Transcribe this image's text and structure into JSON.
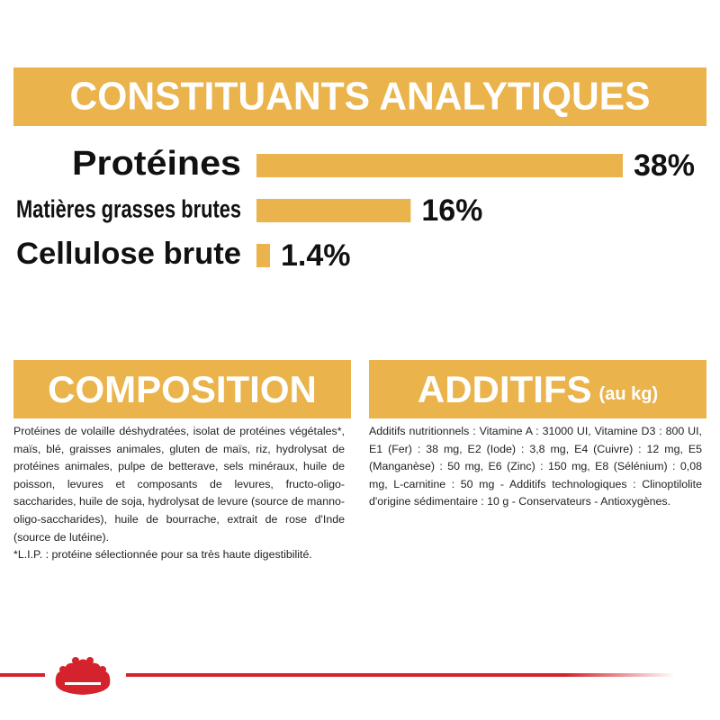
{
  "chart_data": {
    "type": "bar",
    "title": "CONSTITUANTS ANALYTIQUES",
    "categories": [
      "Protéines",
      "Matières grasses brutes",
      "Cellulose brute"
    ],
    "values": [
      38,
      16,
      1.4
    ],
    "value_labels": [
      "38%",
      "16%",
      "1.4%"
    ],
    "color": "#eab34b"
  },
  "composition": {
    "title": "COMPOSITION",
    "paragraphs": [
      "Protéines de volaille déshydratées, isolat de protéines végétales*, maïs, blé, graisses animales, gluten de maïs, riz, hydrolysat de protéines animales, pulpe de betterave, sels minéraux, huile de poisson, levures et composants de levures, fructo-oligo-saccharides, huile de soja, hydrolysat de levure (source de manno-oligo-saccharides), huile de bourrache, extrait de rose d'Inde (source de lutéine).",
      "*L.I.P. : protéine sélectionnée pour sa très haute digestibilité."
    ]
  },
  "additifs": {
    "title": "ADDITIFS",
    "subtitle": "(au kg)",
    "text": "Additifs nutritionnels : Vitamine A : 31000 UI, Vitamine D3 : 800 UI, E1 (Fer) : 38 mg, E2 (Iode) : 3,8 mg, E4 (Cuivre) : 12 mg, E5 (Manganèse) : 50 mg, E6 (Zinc) : 150 mg, E8 (Sélénium) : 0,08 mg, L-carnitine : 50 mg - Additifs technologiques : Clinoptilolite d'origine sédimentaire : 10 g - Conservateurs - Antioxygènes."
  }
}
